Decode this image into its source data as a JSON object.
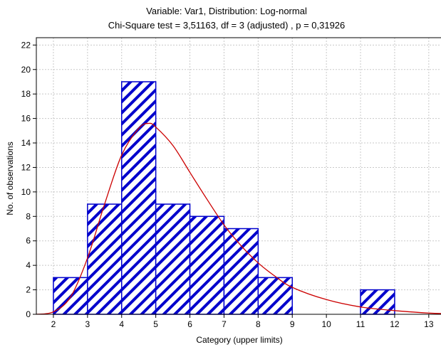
{
  "chart_data": {
    "type": "bar",
    "title": "Variable: Var1, Distribution: Log-normal",
    "subtitle": "Chi-Square test = 3,51163, df = 3 (adjusted) , p = 0,31926",
    "xlabel": "Category (upper limits)",
    "ylabel": "No. of observations",
    "xlim": [
      1.5,
      13.4
    ],
    "ylim": [
      0,
      22.6
    ],
    "x_ticks": [
      2,
      3,
      4,
      5,
      6,
      7,
      8,
      9,
      10,
      11,
      12,
      13
    ],
    "y_ticks": [
      0,
      2,
      4,
      6,
      8,
      10,
      12,
      14,
      16,
      18,
      20,
      22
    ],
    "grid": true,
    "bars": [
      {
        "from": 2,
        "to": 3,
        "value": 3
      },
      {
        "from": 3,
        "to": 4,
        "value": 9
      },
      {
        "from": 4,
        "to": 5,
        "value": 19
      },
      {
        "from": 5,
        "to": 6,
        "value": 9
      },
      {
        "from": 6,
        "to": 7,
        "value": 8
      },
      {
        "from": 7,
        "to": 8,
        "value": 7
      },
      {
        "from": 8,
        "to": 9,
        "value": 3
      },
      {
        "from": 11,
        "to": 12,
        "value": 2
      }
    ],
    "fit_curve": {
      "distribution": "Log-normal",
      "points": [
        [
          1.5,
          0.0
        ],
        [
          2.0,
          0.2
        ],
        [
          2.5,
          1.4
        ],
        [
          3.0,
          4.6
        ],
        [
          3.5,
          9.0
        ],
        [
          4.0,
          13.0
        ],
        [
          4.5,
          15.2
        ],
        [
          4.8,
          15.6
        ],
        [
          5.0,
          15.3
        ],
        [
          5.5,
          13.8
        ],
        [
          6.0,
          11.6
        ],
        [
          6.5,
          9.4
        ],
        [
          7.0,
          7.3
        ],
        [
          7.5,
          5.6
        ],
        [
          8.0,
          4.2
        ],
        [
          8.5,
          3.1
        ],
        [
          9.0,
          2.2
        ],
        [
          10.0,
          1.2
        ],
        [
          11.0,
          0.6
        ],
        [
          12.0,
          0.3
        ],
        [
          13.0,
          0.1
        ],
        [
          13.4,
          0.06
        ]
      ]
    },
    "colors": {
      "bar_edge": "#0000cc",
      "hatch": "#0000cc",
      "bar_fill": "#ffffff",
      "curve": "#cc0000",
      "grid": "#c8c8c8",
      "axis": "#000000"
    }
  }
}
